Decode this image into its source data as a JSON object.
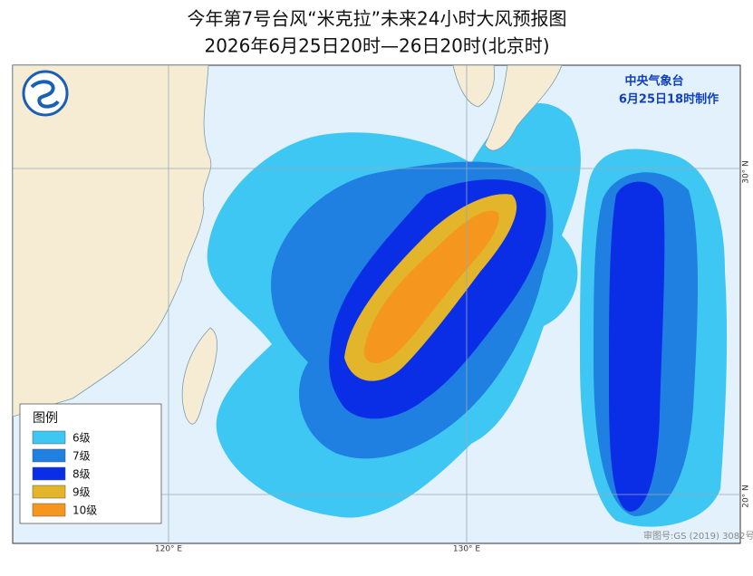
{
  "header": {
    "title": "今年第7号台风“米克拉”未来24小时大风预报图",
    "subtitle": "2026年6月25日20时—26日20时(北京时)"
  },
  "agency": {
    "name": "中央气象台",
    "issued": "6月25日18时制作"
  },
  "legend": {
    "title": "图例",
    "items": [
      {
        "label": "6级",
        "color": "#3fc7f4"
      },
      {
        "label": "7级",
        "color": "#1f80e2"
      },
      {
        "label": "8级",
        "color": "#0a2ee6"
      },
      {
        "label": "9级",
        "color": "#e2b52a"
      },
      {
        "label": "10级",
        "color": "#f5961e"
      }
    ]
  },
  "axes": {
    "longitude": [
      "120° E",
      "130° E"
    ],
    "latitude": [
      "30° N",
      "20° N"
    ]
  },
  "footer": {
    "approval": "审图号:GS (2019) 3082号"
  }
}
